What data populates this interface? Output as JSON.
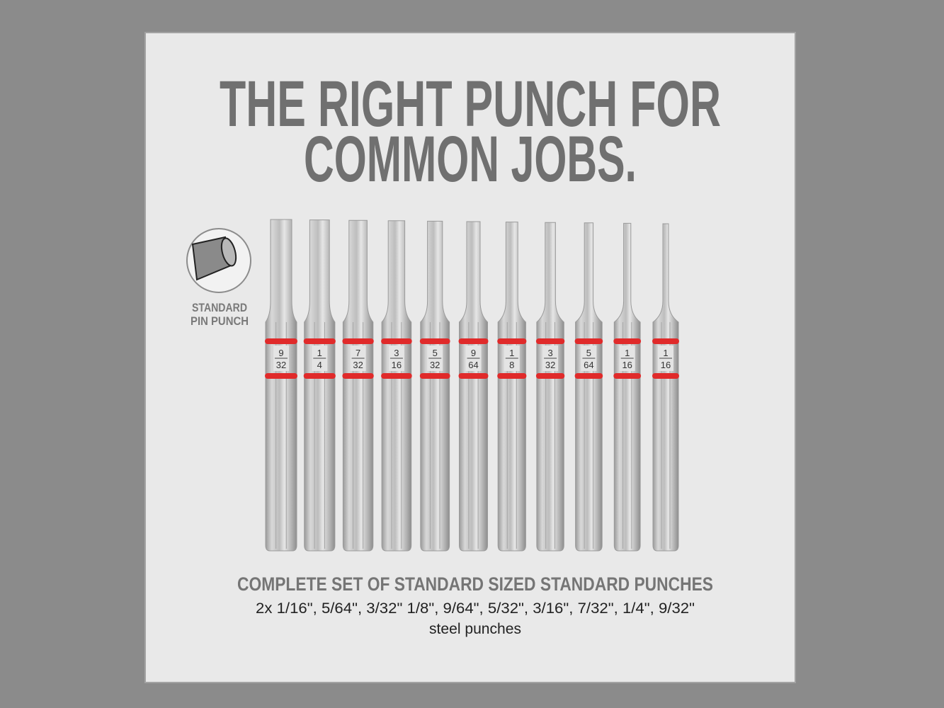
{
  "headline": {
    "line1": "THE RIGHT PUNCH FOR",
    "line2": "COMMON JOBS."
  },
  "inset": {
    "icon": "pin-punch-tip-icon",
    "label_line1": "STANDARD",
    "label_line2": "PIN PUNCH"
  },
  "punches": [
    {
      "num": "9",
      "den": "32"
    },
    {
      "num": "1",
      "den": "4"
    },
    {
      "num": "7",
      "den": "32"
    },
    {
      "num": "3",
      "den": "16"
    },
    {
      "num": "5",
      "den": "32"
    },
    {
      "num": "9",
      "den": "64"
    },
    {
      "num": "1",
      "den": "8"
    },
    {
      "num": "3",
      "den": "32"
    },
    {
      "num": "5",
      "den": "64"
    },
    {
      "num": "1",
      "den": "16"
    },
    {
      "num": "1",
      "den": "16"
    }
  ],
  "caption": {
    "title": "COMPLETE SET OF STANDARD SIZED STANDARD PUNCHES",
    "sizes": "2x 1/16\", 5/64\", 3/32\" 1/8\", 9/64\", 5/32\", 3/16\", 7/32\", 1/4\", 9/32\"",
    "material": "steel punches"
  },
  "colors": {
    "ring": "#e02a2a",
    "steel": "#c9c9c9",
    "text": "#6f6f6f",
    "background": "#e9e9e9"
  }
}
